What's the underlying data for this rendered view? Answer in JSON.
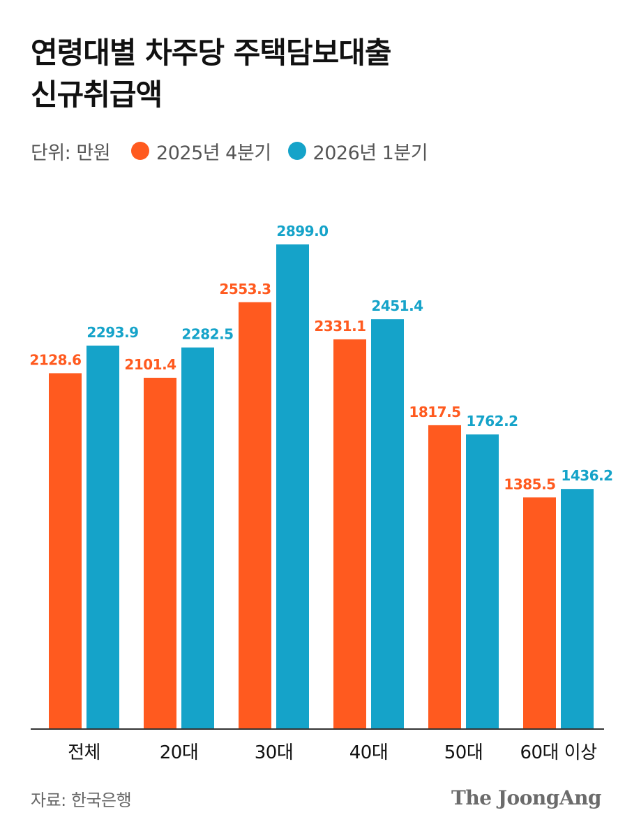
{
  "header": {
    "title_line1": "연령대별 차주당 주택담보대출",
    "title_line2": "신규취급액",
    "unit_label": "단위: 만원"
  },
  "legend": [
    {
      "label": "2025년 4분기",
      "color": "#ff5a1f"
    },
    {
      "label": "2026년 1분기",
      "color": "#15a3c9"
    }
  ],
  "footer": {
    "source": "자료: 한국은행",
    "brand": "The JoongAng"
  },
  "chart_data": {
    "type": "bar",
    "categories": [
      "전체",
      "20대",
      "30대",
      "40대",
      "50대",
      "60대 이상"
    ],
    "series": [
      {
        "name": "2025년 4분기",
        "color": "#ff5a1f",
        "values": [
          2128.6,
          2101.4,
          2553.3,
          2331.1,
          1817.5,
          1385.5
        ]
      },
      {
        "name": "2026년 1분기",
        "color": "#15a3c9",
        "values": [
          2293.9,
          2282.5,
          2899.0,
          2451.4,
          1762.2,
          1436.2
        ]
      }
    ],
    "data_labels": [
      [
        "2128.6",
        "2101.4",
        "2553.3",
        "2331.1",
        "1817.5",
        "1385.5"
      ],
      [
        "2293.9",
        "2282.5",
        "2899.0",
        "2451.4",
        "1762.2",
        "1436.2"
      ]
    ],
    "ylim": [
      0,
      2899.0
    ],
    "grid": false,
    "legend_position": "top-left"
  }
}
